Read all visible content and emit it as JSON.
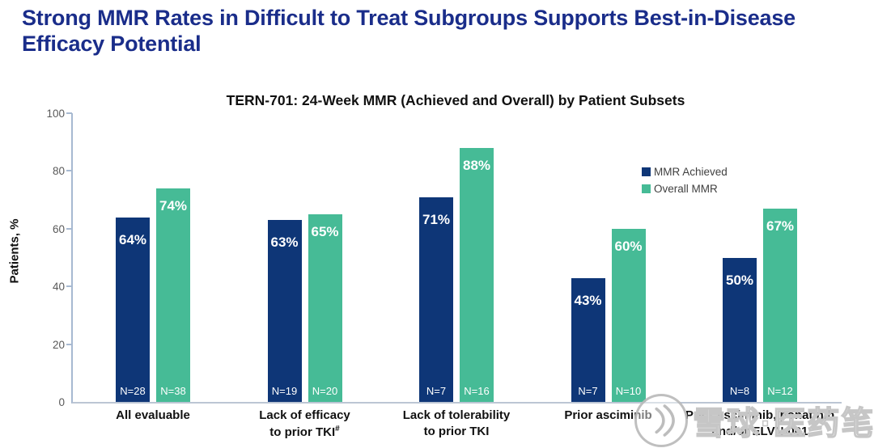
{
  "slide": {
    "title": "Strong MMR Rates in Difficult to Treat Subgroups Supports Best-in-Disease Efficacy Potential"
  },
  "chart_data": {
    "type": "bar",
    "title": "TERN-701: 24-Week MMR (Achieved and Overall) by Patient Subsets",
    "ylabel": "Patients, %",
    "ylim": [
      0,
      100
    ],
    "yticks": [
      0,
      20,
      40,
      60,
      80,
      100
    ],
    "grid": false,
    "legend_position": "upper-right",
    "categories": [
      {
        "lines": [
          "All evaluable"
        ],
        "sup": ""
      },
      {
        "lines": [
          "Lack of efficacy",
          "to prior TKI"
        ],
        "sup": "#"
      },
      {
        "lines": [
          "Lack of tolerability",
          "to prior TKI"
        ],
        "sup": ""
      },
      {
        "lines": [
          "Prior asciminib"
        ],
        "sup": ""
      },
      {
        "lines": [
          "Prior asciminib, ponatinib",
          "and/or ELVN-001"
        ],
        "sup": ""
      }
    ],
    "series": [
      {
        "name": "MMR Achieved",
        "color": "#0e3677",
        "values": [
          64,
          63,
          71,
          43,
          50
        ],
        "value_labels": [
          "64%",
          "63%",
          "71%",
          "43%",
          "50%"
        ],
        "n_labels": [
          "N=28",
          "N=19",
          "N=7",
          "N=7",
          "N=8"
        ]
      },
      {
        "name": "Overall MMR",
        "color": "#46bb96",
        "values": [
          74,
          65,
          88,
          60,
          67
        ],
        "value_labels": [
          "74%",
          "65%",
          "88%",
          "60%",
          "67%"
        ],
        "n_labels": [
          "N=38",
          "N=20",
          "N=16",
          "N=10",
          "N=12"
        ]
      }
    ]
  },
  "colors": {
    "title_navy": "#1a2d8a",
    "tick_gray": "#595959",
    "legend_text": "#404040",
    "axis_line": "#a7b9d1"
  },
  "watermark": {
    "logo": "xueqiu-logo",
    "text": "雪球·医药笔记"
  }
}
